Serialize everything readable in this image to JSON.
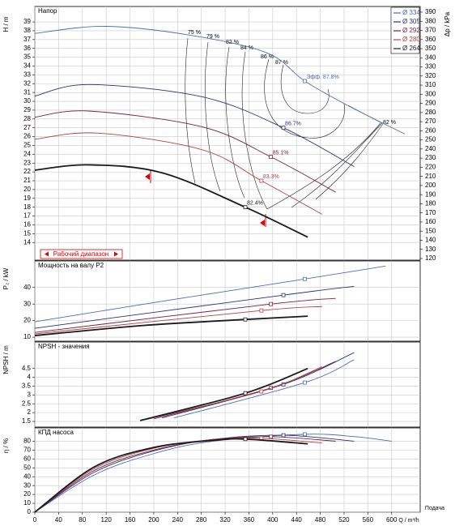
{
  "chart_data": [
    {
      "type": "line",
      "title": "Напор",
      "ylabel": "H / m",
      "y2label": "Δp / kPa",
      "xlim": [
        0,
        648
      ],
      "ylim": [
        12,
        40.75
      ],
      "yticks": [
        14,
        15,
        16,
        17,
        18,
        19,
        20,
        21,
        22,
        23,
        24,
        25,
        26,
        27,
        28,
        29,
        30,
        31,
        32,
        33,
        34,
        35,
        36,
        37,
        38,
        39
      ],
      "y2lim": [
        118.2,
        396.2
      ],
      "y2ticks": [
        120,
        130,
        140,
        150,
        160,
        170,
        180,
        190,
        200,
        210,
        220,
        230,
        240,
        250,
        260,
        270,
        280,
        290,
        300,
        310,
        320,
        330,
        340,
        350,
        360,
        370,
        380,
        390
      ],
      "grid": true,
      "legend": "upper right",
      "working_range": "Рабочий диапазон",
      "iso_labels": [
        "75 %",
        "79 %",
        "82 %",
        "84 %",
        "86 %",
        "87 %",
        "82 %"
      ],
      "series": [
        {
          "name": "Ø 334",
          "color": "#4a6fb5",
          "x": [
            0,
            118,
            261,
            390,
            454,
            527,
            622
          ],
          "values": [
            37.7,
            38.5,
            37.5,
            35.5,
            32.3,
            29.5,
            26.3
          ],
          "bep": {
            "x": 454,
            "value": 32.3
          },
          "bep_label": "Эфф. 87.8%"
        },
        {
          "name": "Ø 305",
          "color": "#28307a",
          "x": [
            0,
            91,
            282,
            418,
            537
          ],
          "values": [
            30.6,
            31.9,
            30.5,
            27.0,
            22.6
          ],
          "bep": {
            "x": 418,
            "value": 27.0
          },
          "bep_label": "86.7%"
        },
        {
          "name": "Ø 292",
          "color": "#7a1f3d",
          "x": [
            0,
            91,
            282,
            397,
            506
          ],
          "values": [
            28.2,
            28.9,
            27.1,
            23.7,
            19.7
          ],
          "bep": {
            "x": 397,
            "value": 23.7
          },
          "bep_label": "85.1%"
        },
        {
          "name": "Ø 280",
          "color": "#b0443e",
          "x": [
            0,
            105,
            282,
            381,
            483
          ],
          "values": [
            25.7,
            26.4,
            24.5,
            21.0,
            17.2
          ],
          "bep": {
            "x": 381,
            "value": 21.0
          },
          "bep_label": "83.3%"
        },
        {
          "name": "Ø 264",
          "color": "#1a1a1a",
          "x": [
            0,
            91,
            214,
            354,
            459
          ],
          "values": [
            22.2,
            22.8,
            21.9,
            18.0,
            14.6
          ],
          "bep": {
            "x": 354,
            "value": 18.0
          },
          "bep_label": "82.4%"
        }
      ]
    },
    {
      "type": "line",
      "title": "Мощность на валу P2",
      "ylabel": "P₂ / kW",
      "xlim": [
        0,
        648
      ],
      "ylim": [
        7.6,
        56
      ],
      "yticks": [
        10,
        20,
        30,
        40
      ],
      "grid": true,
      "series": [
        {
          "color": "#4a6fb5",
          "x": [
            0,
            220,
            454,
            590
          ],
          "values": [
            19.3,
            32,
            45.1,
            52.9
          ],
          "bep": {
            "x": 454,
            "value": 45.1
          }
        },
        {
          "color": "#28307a",
          "x": [
            0,
            418,
            537
          ],
          "values": [
            15.4,
            35.4,
            40.7
          ],
          "bep": {
            "x": 418,
            "value": 35.4
          }
        },
        {
          "color": "#7a1f3d",
          "x": [
            0,
            397,
            506
          ],
          "values": [
            12.9,
            30.0,
            33.4
          ],
          "bep": {
            "x": 397,
            "value": 30.0
          }
        },
        {
          "color": "#b0443e",
          "x": [
            0,
            381,
            483
          ],
          "values": [
            12.0,
            26.1,
            28.5
          ],
          "bep": {
            "x": 381,
            "value": 26.1
          }
        },
        {
          "color": "#1a1a1a",
          "x": [
            0,
            180,
            354,
            459
          ],
          "values": [
            11.0,
            17,
            20.7,
            22.7
          ],
          "bep": {
            "x": 354,
            "value": 20.7
          }
        }
      ]
    },
    {
      "type": "line",
      "title": "NPSH - значения",
      "ylabel": "NPSH / m",
      "xlim": [
        0,
        648
      ],
      "ylim": [
        1.18,
        6.0
      ],
      "yticks": [
        1.5,
        2,
        2.5,
        3,
        3.5,
        4,
        4.5
      ],
      "grid": true,
      "series": [
        {
          "color": "#4a6fb5",
          "x": [
            234,
            454,
            537
          ],
          "values": [
            1.7,
            3.7,
            5.0
          ],
          "bep": {
            "x": 454,
            "value": 3.7
          }
        },
        {
          "color": "#28307a",
          "x": [
            214,
            418,
            537
          ],
          "values": [
            1.7,
            3.6,
            5.4
          ],
          "bep": {
            "x": 418,
            "value": 3.6
          }
        },
        {
          "color": "#7a1f3d",
          "x": [
            200,
            397,
            506
          ],
          "values": [
            1.64,
            3.4,
            4.9
          ],
          "bep": {
            "x": 397,
            "value": 3.4
          }
        },
        {
          "color": "#b0443e",
          "x": [
            186,
            381,
            483
          ],
          "values": [
            1.6,
            3.2,
            4.6
          ],
          "bep": {
            "x": 381,
            "value": 3.2
          }
        },
        {
          "color": "#1a1a1a",
          "x": [
            177,
            354,
            459
          ],
          "values": [
            1.55,
            3.1,
            4.5
          ],
          "bep": {
            "x": 354,
            "value": 3.1
          }
        }
      ]
    },
    {
      "type": "line",
      "title": "КПД насоса",
      "ylabel": "η / %",
      "xlabel": "Q / m³/h",
      "xlabel2": "Подача",
      "xlim": [
        0,
        648
      ],
      "ylim": [
        0,
        95
      ],
      "yticks": [
        0,
        10,
        20,
        30,
        40,
        50,
        60,
        70,
        80
      ],
      "xticks": [
        0,
        40,
        80,
        120,
        160,
        200,
        240,
        280,
        320,
        360,
        400,
        440,
        480,
        520,
        560,
        600
      ],
      "grid": true,
      "series": [
        {
          "color": "#4a6fb5",
          "x": [
            0,
            100,
            200,
            300,
            454,
            540,
            600
          ],
          "values": [
            0,
            42,
            66,
            80,
            87.8,
            85,
            80
          ],
          "bep": {
            "x": 454,
            "value": 87.8
          }
        },
        {
          "color": "#28307a",
          "x": [
            0,
            100,
            200,
            300,
            418,
            537
          ],
          "values": [
            0,
            45,
            69,
            82,
            86.7,
            80
          ],
          "bep": {
            "x": 418,
            "value": 86.7
          }
        },
        {
          "color": "#7a1f3d",
          "x": [
            0,
            100,
            200,
            300,
            397,
            506
          ],
          "values": [
            0,
            47,
            70,
            82,
            85.1,
            80
          ],
          "bep": {
            "x": 397,
            "value": 85.1
          }
        },
        {
          "color": "#b0443e",
          "x": [
            0,
            100,
            200,
            300,
            381,
            483
          ],
          "values": [
            0,
            49,
            72,
            82,
            83.3,
            78
          ],
          "bep": {
            "x": 381,
            "value": 83.3
          }
        },
        {
          "color": "#1a1a1a",
          "x": [
            0,
            100,
            200,
            300,
            354,
            459
          ],
          "values": [
            0,
            51,
            73,
            81,
            82.4,
            77
          ],
          "bep": {
            "x": 354,
            "value": 82.4
          }
        }
      ]
    }
  ]
}
